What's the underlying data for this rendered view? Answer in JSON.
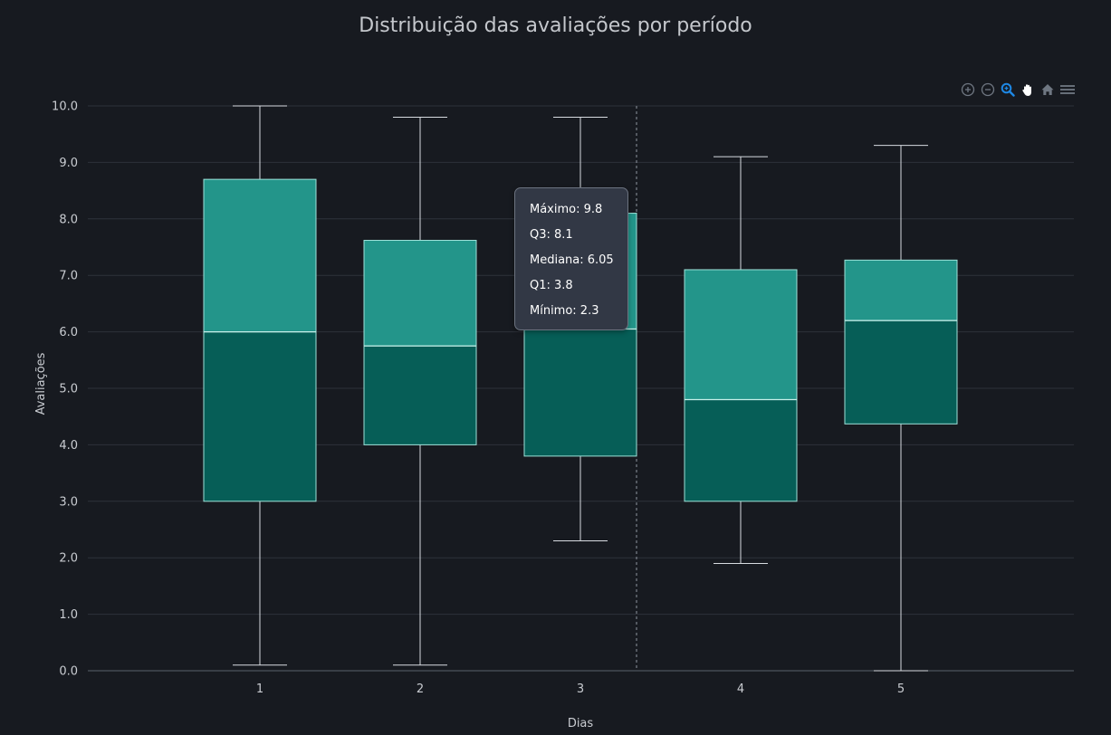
{
  "colors": {
    "background": "#171a20",
    "grid": "#2e323a",
    "box_upper": "#23958a",
    "box_lower": "#065e57",
    "whisker": "#d7dbe0",
    "crosshair": "#8f96a0",
    "toolbar_icon": "#6f7782",
    "toolbar_active": "#1e88e5"
  },
  "toolbar": {
    "buttons": [
      {
        "name": "zoom-in-icon",
        "active": false
      },
      {
        "name": "zoom-out-icon",
        "active": false
      },
      {
        "name": "selection-zoom-icon",
        "active": true
      },
      {
        "name": "pan-hand-icon",
        "active": false
      },
      {
        "name": "home-reset-icon",
        "active": false
      },
      {
        "name": "menu-icon",
        "active": false
      }
    ]
  },
  "tooltip": {
    "max_label": "Máximo: 9.8",
    "q3_label": "Q3: 8.1",
    "median_label": "Mediana: 6.05",
    "q1_label": "Q1: 3.8",
    "min_label": "Mínimo: 2.3"
  },
  "chart_data": {
    "type": "boxplot",
    "title": "Distribuição das avaliações por período",
    "xlabel": "Dias",
    "ylabel": "Avaliações",
    "ylim": [
      0,
      10
    ],
    "y_ticks": [
      "0.0",
      "1.0",
      "2.0",
      "3.0",
      "4.0",
      "5.0",
      "6.0",
      "7.0",
      "8.0",
      "9.0",
      "10.0"
    ],
    "grid": true,
    "categories": [
      "1",
      "2",
      "3",
      "4",
      "5"
    ],
    "boxes": [
      {
        "x": "1",
        "min": 0.1,
        "q1": 3.0,
        "median": 6.0,
        "q3": 8.7,
        "max": 10.0
      },
      {
        "x": "2",
        "min": 0.1,
        "q1": 4.0,
        "median": 5.75,
        "q3": 7.62,
        "max": 9.8
      },
      {
        "x": "3",
        "min": 2.3,
        "q1": 3.8,
        "median": 6.05,
        "q3": 8.1,
        "max": 9.8
      },
      {
        "x": "4",
        "min": 1.9,
        "q1": 3.0,
        "median": 4.8,
        "q3": 7.1,
        "max": 9.1
      },
      {
        "x": "5",
        "min": 0.0,
        "q1": 4.37,
        "median": 6.2,
        "q3": 7.27,
        "max": 9.3
      }
    ]
  }
}
